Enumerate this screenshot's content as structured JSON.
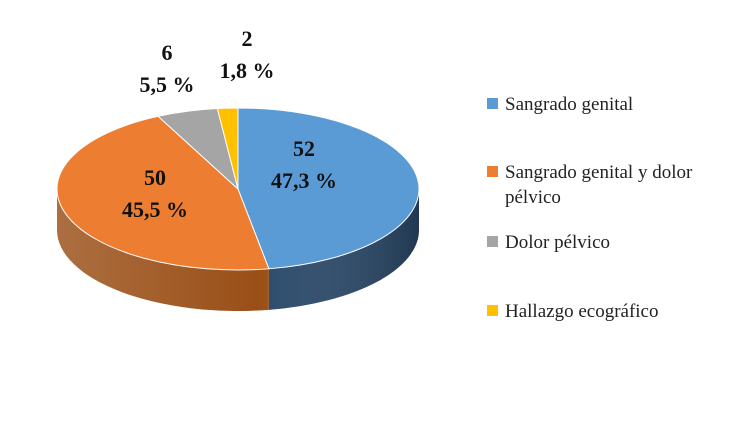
{
  "chart_data": {
    "type": "pie",
    "style": "3d",
    "title": "",
    "categories": [
      "Sangrado genital",
      "Sangrado genital y dolor pélvico",
      "Dolor pélvico",
      "Hallazgo ecográfico"
    ],
    "values": [
      52,
      50,
      6,
      2
    ],
    "percent_labels": [
      "47,3 %",
      "45,5 %",
      "5,5 %",
      "1,8 %"
    ],
    "count_labels": [
      "52",
      "50",
      "6",
      "2"
    ],
    "colors": [
      "#5B9BD5",
      "#ED7D31",
      "#A5A5A5",
      "#FFC000"
    ],
    "side_colors": [
      "#2B4A6B",
      "#9A4F17",
      "#6E6E6E",
      "#B58900"
    ],
    "legend_position": "right"
  },
  "legend": {
    "items": [
      {
        "label": "Sangrado genital",
        "color": "#5B9BD5"
      },
      {
        "label": "Sangrado genital y dolor pélvico",
        "color": "#ED7D31"
      },
      {
        "label": "Dolor pélvico",
        "color": "#A5A5A5"
      },
      {
        "label": "Hallazgo ecográfico",
        "color": "#FFC000"
      }
    ]
  }
}
